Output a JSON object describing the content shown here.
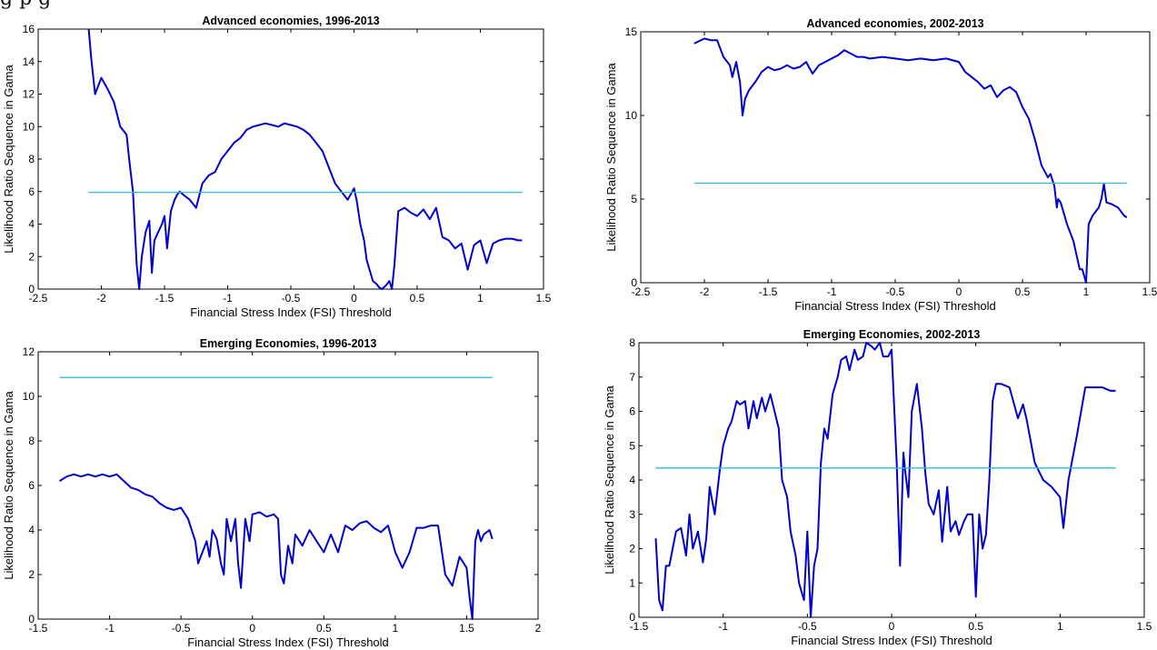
{
  "caption_fragment": "g        p        g",
  "chart_data": [
    {
      "type": "line",
      "title": "Advanced economies, 1996-2013",
      "xlabel": "Financial Stress Index (FSI) Threshold",
      "ylabel": "Likelihood Ratio Sequence in Gama",
      "xlim": [
        -2.5,
        1.5
      ],
      "ylim": [
        0,
        16
      ],
      "xticks": [
        -2.5,
        -2,
        -1.5,
        -1,
        -0.5,
        0,
        0.5,
        1,
        1.5
      ],
      "yticks": [
        0,
        2,
        4,
        6,
        8,
        10,
        12,
        14,
        16
      ],
      "colors": {
        "series": "#0000cc",
        "threshold": "#33bbdd"
      },
      "series": [
        {
          "x": [
            -2.1,
            -2.08,
            -2.05,
            -2.0,
            -1.95,
            -1.9,
            -1.85,
            -1.8,
            -1.78,
            -1.75,
            -1.72,
            -1.7,
            -1.68,
            -1.65,
            -1.62,
            -1.6,
            -1.58,
            -1.55,
            -1.52,
            -1.5,
            -1.48,
            -1.45,
            -1.42,
            -1.4,
            -1.38,
            -1.35,
            -1.3,
            -1.25,
            -1.2,
            -1.15,
            -1.1,
            -1.05,
            -1.0,
            -0.95,
            -0.9,
            -0.85,
            -0.8,
            -0.75,
            -0.7,
            -0.65,
            -0.6,
            -0.55,
            -0.5,
            -0.45,
            -0.4,
            -0.35,
            -0.3,
            -0.25,
            -0.2,
            -0.15,
            -0.1,
            -0.05,
            0.0,
            0.02,
            0.05,
            0.08,
            0.1,
            0.13,
            0.15,
            0.18,
            0.2,
            0.22,
            0.25,
            0.28,
            0.3,
            0.32,
            0.35,
            0.4,
            0.45,
            0.5,
            0.55,
            0.6,
            0.65,
            0.7,
            0.75,
            0.8,
            0.85,
            0.9,
            0.95,
            1.0,
            1.05,
            1.1,
            1.15,
            1.2,
            1.25,
            1.3,
            1.33
          ],
          "y": [
            16.0,
            14.2,
            12.0,
            13.0,
            12.3,
            11.5,
            10.0,
            9.5,
            8.0,
            6.0,
            1.5,
            0.0,
            2.0,
            3.5,
            4.2,
            1.0,
            3.0,
            3.5,
            4.0,
            4.5,
            2.5,
            4.8,
            5.5,
            5.8,
            6.0,
            5.8,
            5.5,
            5.0,
            6.5,
            7.0,
            7.2,
            8.0,
            8.5,
            9.0,
            9.3,
            9.8,
            10.0,
            10.1,
            10.2,
            10.1,
            10.0,
            10.2,
            10.1,
            10.0,
            9.8,
            9.5,
            9.0,
            8.5,
            7.5,
            6.5,
            6.0,
            5.5,
            6.2,
            5.5,
            4.0,
            3.0,
            1.8,
            1.0,
            0.5,
            0.3,
            0.1,
            0.0,
            0.2,
            0.5,
            0.0,
            1.5,
            4.8,
            5.0,
            4.7,
            4.5,
            4.9,
            4.3,
            5.0,
            3.2,
            3.0,
            2.5,
            2.8,
            1.2,
            2.7,
            3.0,
            1.6,
            2.8,
            3.0,
            3.1,
            3.1,
            3.0,
            3.0
          ]
        },
        {
          "x": [
            -2.1,
            1.33
          ],
          "y": [
            5.95,
            5.95
          ]
        }
      ]
    },
    {
      "type": "line",
      "title": "Advanced economies, 2002-2013",
      "xlabel": "Financial Stress Index (FSI) Threshold",
      "ylabel": "Likelihood Ratio Sequence in Gama",
      "xlim": [
        -2.5,
        1.5
      ],
      "ylim": [
        0,
        15
      ],
      "xticks": [
        -2.5,
        -2,
        -1.5,
        -1,
        -0.5,
        0,
        0.5,
        1,
        1.5
      ],
      "yticks": [
        0,
        5,
        10,
        15
      ],
      "colors": {
        "series": "#0000cc",
        "threshold": "#33bbdd"
      },
      "series": [
        {
          "x": [
            -2.08,
            -2.0,
            -1.95,
            -1.9,
            -1.85,
            -1.8,
            -1.78,
            -1.75,
            -1.72,
            -1.7,
            -1.68,
            -1.65,
            -1.6,
            -1.55,
            -1.5,
            -1.45,
            -1.4,
            -1.35,
            -1.3,
            -1.25,
            -1.2,
            -1.15,
            -1.1,
            -1.05,
            -1.0,
            -0.95,
            -0.9,
            -0.85,
            -0.8,
            -0.75,
            -0.7,
            -0.6,
            -0.5,
            -0.4,
            -0.3,
            -0.2,
            -0.1,
            0.0,
            0.05,
            0.1,
            0.15,
            0.2,
            0.25,
            0.3,
            0.35,
            0.4,
            0.45,
            0.5,
            0.55,
            0.6,
            0.65,
            0.7,
            0.72,
            0.75,
            0.77,
            0.78,
            0.8,
            0.85,
            0.9,
            0.95,
            0.97,
            1.0,
            1.02,
            1.05,
            1.1,
            1.12,
            1.14,
            1.16,
            1.2,
            1.25,
            1.3,
            1.32
          ],
          "y": [
            14.3,
            14.6,
            14.5,
            14.5,
            13.5,
            13.0,
            12.3,
            13.2,
            12.0,
            10.0,
            11.0,
            11.5,
            12.0,
            12.6,
            12.9,
            12.7,
            12.8,
            13.0,
            12.8,
            12.9,
            13.2,
            12.5,
            13.0,
            13.2,
            13.4,
            13.6,
            13.9,
            13.7,
            13.5,
            13.5,
            13.4,
            13.5,
            13.4,
            13.3,
            13.4,
            13.3,
            13.4,
            13.2,
            12.6,
            12.3,
            12.0,
            11.6,
            11.8,
            11.1,
            11.5,
            11.7,
            11.4,
            10.5,
            9.8,
            8.5,
            7.0,
            6.3,
            6.5,
            5.8,
            4.5,
            5.0,
            4.8,
            3.5,
            2.5,
            0.8,
            0.8,
            0.0,
            3.5,
            4.0,
            4.5,
            5.0,
            5.9,
            4.8,
            4.7,
            4.5,
            4.0,
            3.9
          ]
        },
        {
          "x": [
            -2.08,
            1.32
          ],
          "y": [
            5.95,
            5.95
          ]
        }
      ]
    },
    {
      "type": "line",
      "title": "Emerging Economies, 1996-2013",
      "xlabel": "Financial Stress Index (FSI) Threshold",
      "ylabel": "Likelihood Ratio Sequence in Gama",
      "xlim": [
        -1.5,
        2
      ],
      "ylim": [
        0,
        12
      ],
      "xticks": [
        -1.5,
        -1,
        -0.5,
        0,
        0.5,
        1,
        1.5,
        2
      ],
      "yticks": [
        0,
        2,
        4,
        6,
        8,
        10,
        12
      ],
      "colors": {
        "series": "#0000cc",
        "threshold": "#33bbdd"
      },
      "series": [
        {
          "x": [
            -1.35,
            -1.3,
            -1.25,
            -1.2,
            -1.15,
            -1.1,
            -1.05,
            -1.0,
            -0.95,
            -0.9,
            -0.85,
            -0.8,
            -0.75,
            -0.7,
            -0.65,
            -0.6,
            -0.55,
            -0.5,
            -0.45,
            -0.4,
            -0.38,
            -0.35,
            -0.32,
            -0.3,
            -0.28,
            -0.25,
            -0.22,
            -0.2,
            -0.18,
            -0.15,
            -0.12,
            -0.1,
            -0.08,
            -0.05,
            -0.02,
            0.0,
            0.05,
            0.1,
            0.15,
            0.18,
            0.2,
            0.22,
            0.25,
            0.28,
            0.3,
            0.35,
            0.4,
            0.45,
            0.5,
            0.55,
            0.6,
            0.65,
            0.7,
            0.75,
            0.8,
            0.85,
            0.9,
            0.95,
            1.0,
            1.05,
            1.1,
            1.15,
            1.2,
            1.25,
            1.3,
            1.35,
            1.4,
            1.45,
            1.5,
            1.52,
            1.54,
            1.56,
            1.58,
            1.6,
            1.62,
            1.64,
            1.66,
            1.68
          ],
          "y": [
            6.2,
            6.4,
            6.5,
            6.4,
            6.5,
            6.4,
            6.5,
            6.4,
            6.5,
            6.2,
            5.9,
            5.8,
            5.6,
            5.5,
            5.2,
            5.0,
            4.9,
            5.0,
            4.5,
            3.5,
            2.5,
            3.0,
            3.5,
            2.8,
            4.0,
            3.6,
            2.5,
            2.0,
            4.5,
            3.5,
            4.5,
            2.5,
            1.4,
            4.5,
            3.5,
            4.7,
            4.8,
            4.6,
            4.7,
            4.5,
            2.0,
            1.6,
            3.3,
            2.5,
            3.8,
            3.3,
            4.0,
            3.5,
            3.0,
            3.8,
            3.0,
            4.2,
            4.0,
            4.3,
            4.4,
            4.1,
            3.9,
            4.2,
            3.0,
            2.3,
            3.0,
            4.1,
            4.1,
            4.2,
            4.2,
            2.0,
            1.5,
            2.8,
            2.3,
            1.0,
            0.0,
            3.5,
            4.0,
            3.5,
            3.8,
            3.9,
            4.0,
            3.6
          ]
        },
        {
          "x": [
            -1.35,
            1.68
          ],
          "y": [
            10.85,
            10.85
          ]
        }
      ]
    },
    {
      "type": "line",
      "title": "Emerging Economies, 2002-2013",
      "xlabel": "Financial Stress Index (FSI) Threshold",
      "ylabel": "Likelihood Ratio Sequence in Gama",
      "xlim": [
        -1.5,
        1.5
      ],
      "ylim": [
        0,
        8
      ],
      "xticks": [
        -1.5,
        -1,
        -0.5,
        0,
        0.5,
        1,
        1.5
      ],
      "yticks": [
        0,
        1,
        2,
        3,
        4,
        5,
        6,
        7,
        8
      ],
      "colors": {
        "series": "#0000cc",
        "threshold": "#33bbdd"
      },
      "series": [
        {
          "x": [
            -1.4,
            -1.38,
            -1.36,
            -1.34,
            -1.32,
            -1.3,
            -1.28,
            -1.25,
            -1.22,
            -1.2,
            -1.18,
            -1.15,
            -1.12,
            -1.1,
            -1.08,
            -1.05,
            -1.02,
            -1.0,
            -0.97,
            -0.95,
            -0.92,
            -0.9,
            -0.87,
            -0.85,
            -0.82,
            -0.8,
            -0.77,
            -0.75,
            -0.72,
            -0.7,
            -0.67,
            -0.65,
            -0.62,
            -0.6,
            -0.57,
            -0.55,
            -0.52,
            -0.5,
            -0.48,
            -0.46,
            -0.44,
            -0.42,
            -0.4,
            -0.38,
            -0.35,
            -0.32,
            -0.3,
            -0.27,
            -0.25,
            -0.22,
            -0.2,
            -0.17,
            -0.15,
            -0.12,
            -0.1,
            -0.07,
            -0.05,
            -0.02,
            0.0,
            0.03,
            0.05,
            0.07,
            0.08,
            0.1,
            0.12,
            0.15,
            0.18,
            0.2,
            0.22,
            0.25,
            0.28,
            0.3,
            0.33,
            0.35,
            0.38,
            0.4,
            0.43,
            0.45,
            0.48,
            0.5,
            0.52,
            0.54,
            0.56,
            0.58,
            0.6,
            0.62,
            0.65,
            0.7,
            0.75,
            0.78,
            0.8,
            0.85,
            0.9,
            0.95,
            1.0,
            1.02,
            1.05,
            1.1,
            1.15,
            1.2,
            1.25,
            1.3,
            1.33
          ],
          "y": [
            2.3,
            0.5,
            0.2,
            1.5,
            1.5,
            2.0,
            2.5,
            2.6,
            1.8,
            3.0,
            2.0,
            2.5,
            1.6,
            2.3,
            3.8,
            3.0,
            4.3,
            5.0,
            5.5,
            5.7,
            6.3,
            6.2,
            6.3,
            5.5,
            6.3,
            5.8,
            6.4,
            6.0,
            6.5,
            6.1,
            5.5,
            4.0,
            3.5,
            2.5,
            1.8,
            1.0,
            0.5,
            2.5,
            0.0,
            1.5,
            2.0,
            4.5,
            5.5,
            5.2,
            6.5,
            7.0,
            7.5,
            7.6,
            7.2,
            7.8,
            7.5,
            7.6,
            8.0,
            7.9,
            7.8,
            8.0,
            7.6,
            7.6,
            7.8,
            4.5,
            1.5,
            4.8,
            4.3,
            3.5,
            6.0,
            6.8,
            5.5,
            4.2,
            3.3,
            3.0,
            3.7,
            2.2,
            3.8,
            2.5,
            2.8,
            2.4,
            2.8,
            3.0,
            3.0,
            0.6,
            3.0,
            2.0,
            2.4,
            4.0,
            6.3,
            6.8,
            6.8,
            6.7,
            5.8,
            6.2,
            5.8,
            4.5,
            4.0,
            3.8,
            3.5,
            2.6,
            4.0,
            5.3,
            6.7,
            6.7,
            6.7,
            6.6,
            6.6
          ]
        },
        {
          "x": [
            -1.4,
            1.33
          ],
          "y": [
            4.35,
            4.35
          ]
        }
      ]
    }
  ]
}
